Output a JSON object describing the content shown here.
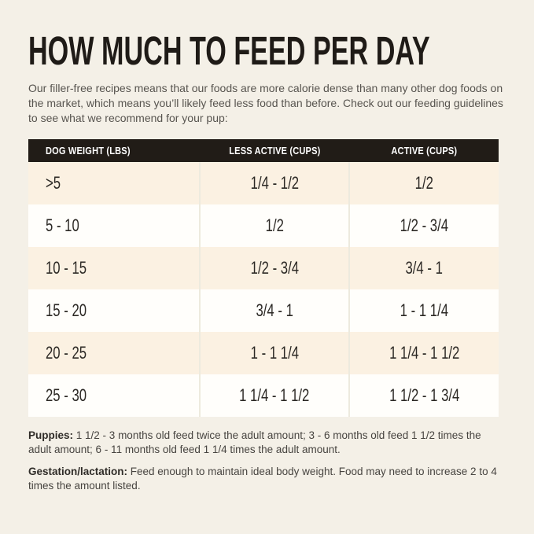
{
  "page": {
    "title": "HOW MUCH TO FEED PER DAY",
    "intro": "Our filler-free recipes means that our foods are more calorie dense than many other dog foods on the market, which means you’ll likely feed less food than before. Check out our feeding guidelines to see what we recommend for your pup:"
  },
  "table": {
    "columns": [
      "DOG WEIGHT (LBS)",
      "LESS ACTIVE (CUPS)",
      "ACTIVE (CUPS)"
    ],
    "rows": [
      [
        ">5",
        "1/4 - 1/2",
        "1/2"
      ],
      [
        "5 - 10",
        "1/2",
        "1/2 - 3/4"
      ],
      [
        "10 - 15",
        "1/2 - 3/4",
        "3/4 - 1"
      ],
      [
        "15 - 20",
        "3/4 - 1",
        "1 - 1 1/4"
      ],
      [
        "20 - 25",
        "1 - 1 1/4",
        "1 1/4 - 1 1/2"
      ],
      [
        "25 - 30",
        "1 1/4 - 1 1/2",
        "1 1/2 - 1 3/4"
      ]
    ]
  },
  "notes": [
    {
      "label": "Puppies:",
      "text": "1 1/2 - 3 months old feed twice the adult amount; 3 - 6 months old feed 1 1/2 times the adult amount; 6 - 11 months old feed 1 1/4 times the adult amount."
    },
    {
      "label": "Gestation/lactation:",
      "text": "Feed enough to maintain ideal body weight. Food may need to increase 2 to 4 times the amount listed."
    }
  ],
  "colors": {
    "page_background": "#f4f0e7",
    "header_background": "#211c17",
    "header_text": "#ffffff",
    "row_alternate": "#fbf1e2",
    "row_base": "#fffefb",
    "title_text": "#1f1b17",
    "body_text": "#57544f",
    "column_divider": "#edeade"
  }
}
